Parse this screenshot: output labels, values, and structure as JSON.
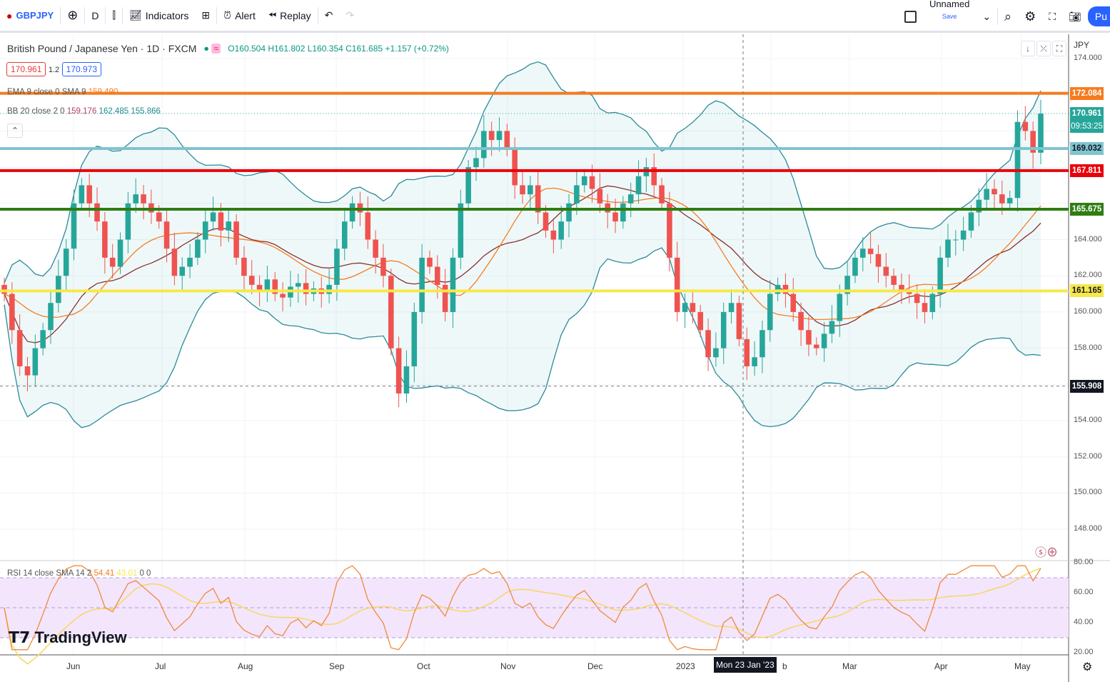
{
  "toolbar": {
    "symbol": "GBPJPY",
    "interval": "D",
    "indicators": "Indicators",
    "alert": "Alert",
    "replay": "Replay",
    "layout_name": "Unnamed",
    "save": "Save",
    "publish": "Pu"
  },
  "legend": {
    "title": "British Pound / Japanese Yen · 1D · FXCM",
    "ohlc": {
      "o": "O160.504",
      "h": "H161.802",
      "l": "L160.354",
      "c": "C161.685",
      "chg": "+1.157 (+0.72%)"
    },
    "sell": "170.961",
    "spread": "1.2",
    "buy": "170.973",
    "ema": "EMA 9 close 0 SMA 9",
    "ema_val": "159.490",
    "bb": "BB 20 close 2 0",
    "bb_vals": [
      "159.176",
      "162.485",
      "155.866"
    ],
    "rsi": "RSI 14 close SMA 14 2",
    "rsi_vals": [
      "54.41",
      "43.01",
      "0",
      "0"
    ]
  },
  "price_axis": {
    "currency": "JPY",
    "ticks": [
      "174.000",
      "164.000",
      "162.000",
      "160.000",
      "158.000",
      "154.000",
      "152.000",
      "150.000",
      "148.000"
    ],
    "rsi_ticks": [
      "80.00",
      "60.00",
      "40.00",
      "20.00"
    ]
  },
  "levels": [
    {
      "price": "172.084",
      "color": "#f57c1f"
    },
    {
      "price": "169.032",
      "color": "#7fc4d0"
    },
    {
      "price": "167.811",
      "color": "#e8000b"
    },
    {
      "price": "165.675",
      "color": "#2e7d12"
    },
    {
      "price": "161.165",
      "color": "#f6e84a"
    }
  ],
  "current": {
    "price": "170.961",
    "countdown": "09:53:25",
    "color": "#26a69a"
  },
  "crosshair": {
    "price": "155.908",
    "date": "Mon 23 Jan '23"
  },
  "time_axis": [
    "Jun",
    "Jul",
    "Aug",
    "Sep",
    "Oct",
    "Nov",
    "Dec",
    "2023",
    "b",
    "Mar",
    "Apr",
    "May"
  ],
  "brand": "TradingView",
  "chart_data": {
    "type": "candlestick",
    "symbol": "GBPJPY",
    "ylim": [
      147,
      175
    ],
    "closes": [
      161,
      159,
      157,
      156.5,
      158,
      159,
      160.5,
      162,
      163.5,
      166,
      167,
      166,
      165,
      163,
      162.5,
      164,
      166,
      166.5,
      166,
      165.5,
      165,
      163.5,
      162,
      162.5,
      163,
      164,
      165,
      165.5,
      164.5,
      165,
      163,
      162,
      161.5,
      161.2,
      161.8,
      161,
      160.8,
      161.4,
      161.6,
      161,
      161.3,
      161,
      161.5,
      163.5,
      165,
      166,
      165.5,
      164,
      163,
      162,
      158,
      155.5,
      157,
      160,
      163,
      162.5,
      161.5,
      160,
      163,
      166,
      168,
      168.5,
      170,
      169.5,
      170,
      169,
      167,
      166.5,
      167,
      165.5,
      164.5,
      164,
      165,
      166,
      167,
      167.5,
      166.8,
      166,
      165.5,
      165,
      166,
      166.5,
      167.5,
      168,
      167,
      166,
      163,
      160,
      160.5,
      160,
      159,
      157.5,
      158,
      160,
      160.5,
      158.5,
      157,
      157.5,
      159,
      161,
      161.5,
      161,
      160,
      159,
      158.2,
      158,
      158.8,
      159.5,
      161,
      162,
      163,
      163.5,
      163.2,
      162.5,
      162,
      161.5,
      161.2,
      161,
      160.5,
      160,
      161,
      163,
      164,
      164,
      164.5,
      165.5,
      166.2,
      166.8,
      166.5,
      166,
      166.3,
      170.5,
      170,
      168.8,
      170.96
    ],
    "overlays": [
      "EMA 9",
      "SMA 9",
      "BB 20 2"
    ],
    "rsi_bands": [
      30,
      70
    ]
  }
}
